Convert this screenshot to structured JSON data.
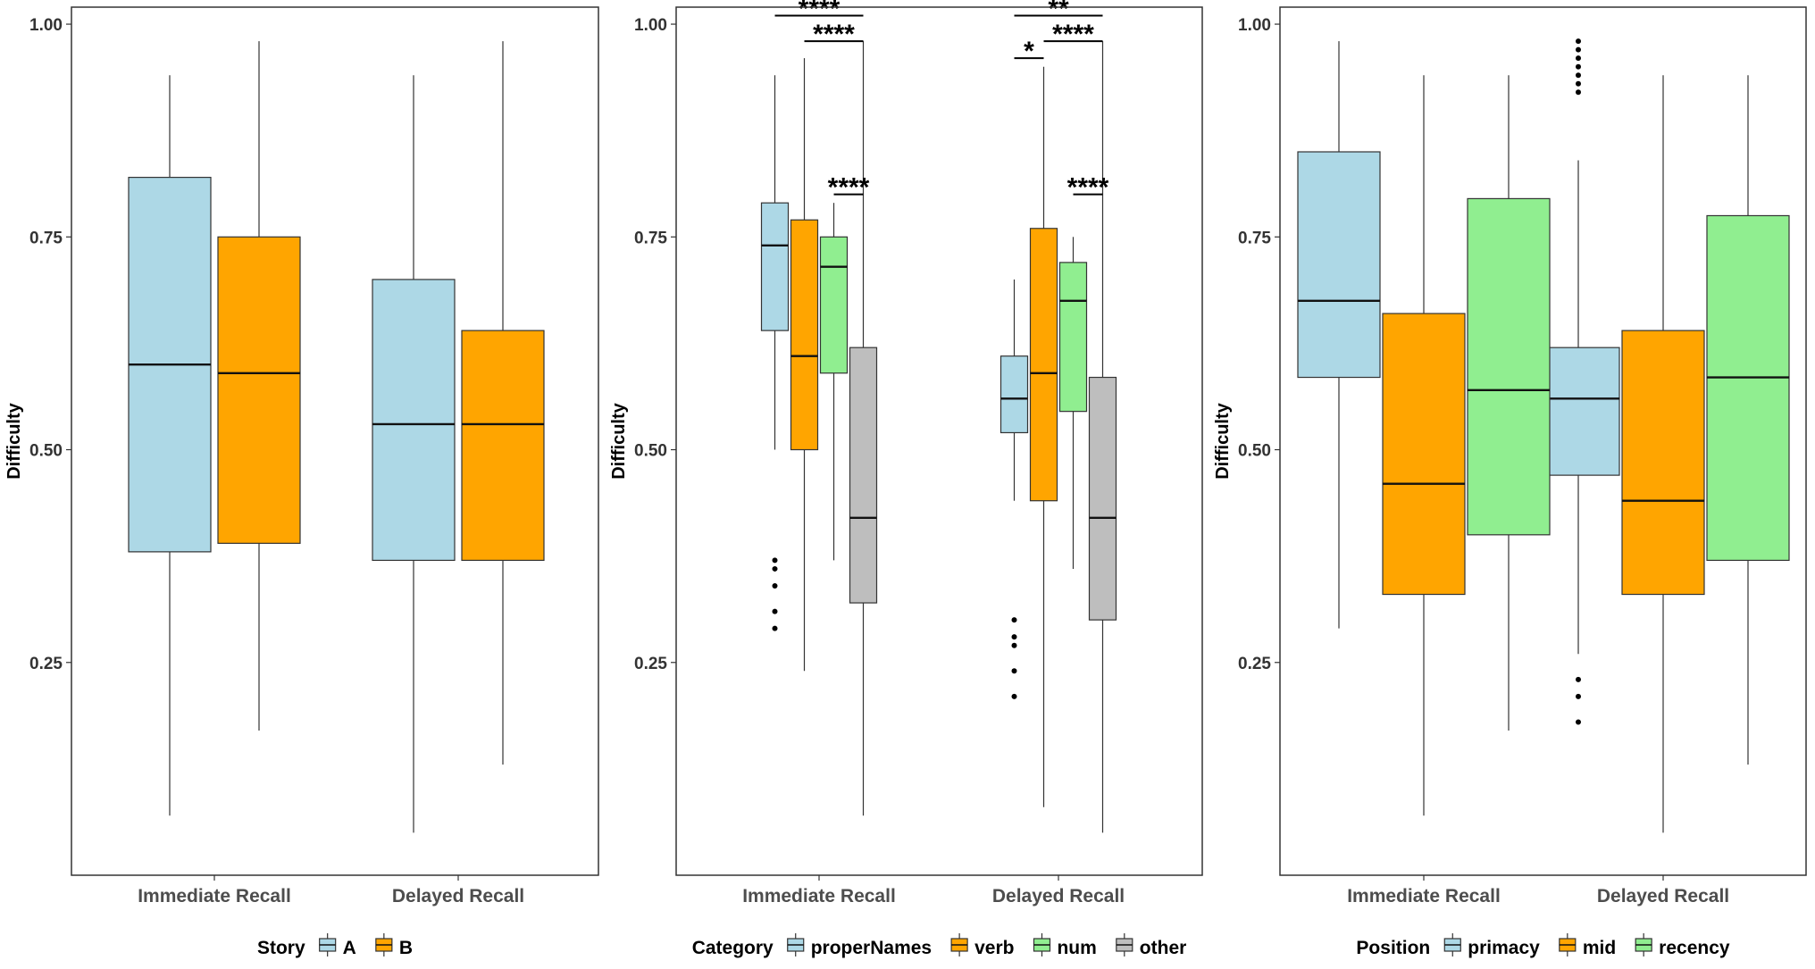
{
  "chart_data": [
    {
      "type": "boxplot",
      "ylabel": "Difficulty",
      "xlabel": "",
      "ylim": [
        0,
        1.02
      ],
      "yticks": [
        0.25,
        0.5,
        0.75,
        1.0
      ],
      "ytick_labels": [
        "0.25",
        "0.50",
        "0.75",
        "1.00"
      ],
      "categories": [
        "Immediate Recall",
        "Delayed Recall"
      ],
      "legend": {
        "title": "Story",
        "position": "bottom"
      },
      "series": [
        {
          "name": "A",
          "color": "#add8e6",
          "boxes": [
            {
              "min": 0.07,
              "q1": 0.38,
              "median": 0.6,
              "q3": 0.82,
              "max": 0.94,
              "outliers": []
            },
            {
              "min": 0.05,
              "q1": 0.37,
              "median": 0.53,
              "q3": 0.7,
              "max": 0.94,
              "outliers": []
            }
          ]
        },
        {
          "name": "B",
          "color": "#ffa500",
          "boxes": [
            {
              "min": 0.17,
              "q1": 0.39,
              "median": 0.59,
              "q3": 0.75,
              "max": 0.98,
              "outliers": []
            },
            {
              "min": 0.13,
              "q1": 0.37,
              "median": 0.53,
              "q3": 0.64,
              "max": 0.98,
              "outliers": []
            }
          ]
        }
      ],
      "annotations": []
    },
    {
      "type": "boxplot",
      "ylabel": "Difficulty",
      "xlabel": "",
      "ylim": [
        0,
        1.02
      ],
      "yticks": [
        0.25,
        0.5,
        0.75,
        1.0
      ],
      "ytick_labels": [
        "0.25",
        "0.50",
        "0.75",
        "1.00"
      ],
      "categories": [
        "Immediate Recall",
        "Delayed Recall"
      ],
      "legend": {
        "title": "Category",
        "position": "bottom"
      },
      "series": [
        {
          "name": "properNames",
          "color": "#add8e6",
          "boxes": [
            {
              "min": 0.5,
              "q1": 0.64,
              "median": 0.74,
              "q3": 0.79,
              "max": 0.94,
              "outliers": [
                0.37,
                0.36,
                0.34,
                0.31,
                0.29
              ]
            },
            {
              "min": 0.44,
              "q1": 0.52,
              "median": 0.56,
              "q3": 0.61,
              "max": 0.7,
              "outliers": [
                0.3,
                0.28,
                0.27,
                0.24,
                0.21
              ]
            }
          ]
        },
        {
          "name": "verb",
          "color": "#ffa500",
          "boxes": [
            {
              "min": 0.24,
              "q1": 0.5,
              "median": 0.61,
              "q3": 0.77,
              "max": 0.96,
              "outliers": []
            },
            {
              "min": 0.08,
              "q1": 0.44,
              "median": 0.59,
              "q3": 0.76,
              "max": 0.95,
              "outliers": []
            }
          ]
        },
        {
          "name": "num",
          "color": "#90ee90",
          "boxes": [
            {
              "min": 0.37,
              "q1": 0.59,
              "median": 0.715,
              "q3": 0.75,
              "max": 0.79,
              "outliers": []
            },
            {
              "min": 0.36,
              "q1": 0.545,
              "median": 0.675,
              "q3": 0.72,
              "max": 0.75,
              "outliers": []
            }
          ]
        },
        {
          "name": "other",
          "color": "#bebebe",
          "boxes": [
            {
              "min": 0.07,
              "q1": 0.32,
              "median": 0.42,
              "q3": 0.62,
              "max": 0.98,
              "outliers": []
            },
            {
              "min": 0.05,
              "q1": 0.3,
              "median": 0.42,
              "q3": 0.585,
              "max": 0.98,
              "outliers": []
            }
          ]
        }
      ],
      "annotations": [
        {
          "category": 0,
          "from": 0,
          "to": 3,
          "y": 1.01,
          "label": "****"
        },
        {
          "category": 0,
          "from": 1,
          "to": 3,
          "y": 0.98,
          "label": "****"
        },
        {
          "category": 0,
          "from": 2,
          "to": 3,
          "y": 0.8,
          "label": "****"
        },
        {
          "category": 1,
          "from": 0,
          "to": 3,
          "y": 1.01,
          "label": "**"
        },
        {
          "category": 1,
          "from": 1,
          "to": 3,
          "y": 0.98,
          "label": "****"
        },
        {
          "category": 1,
          "from": 0,
          "to": 1,
          "y": 0.96,
          "label": "*"
        },
        {
          "category": 1,
          "from": 2,
          "to": 3,
          "y": 0.8,
          "label": "****"
        }
      ]
    },
    {
      "type": "boxplot",
      "ylabel": "Difficulty",
      "xlabel": "",
      "ylim": [
        0,
        1.02
      ],
      "yticks": [
        0.25,
        0.5,
        0.75,
        1.0
      ],
      "ytick_labels": [
        "0.25",
        "0.50",
        "0.75",
        "1.00"
      ],
      "categories": [
        "Immediate Recall",
        "Delayed Recall"
      ],
      "legend": {
        "title": "Position",
        "position": "bottom"
      },
      "series": [
        {
          "name": "primacy",
          "color": "#add8e6",
          "boxes": [
            {
              "min": 0.29,
              "q1": 0.585,
              "median": 0.675,
              "q3": 0.85,
              "max": 0.98,
              "outliers": []
            },
            {
              "min": 0.26,
              "q1": 0.47,
              "median": 0.56,
              "q3": 0.62,
              "max": 0.84,
              "outliers": [
                0.98,
                0.97,
                0.96,
                0.95,
                0.94,
                0.93,
                0.92,
                0.23,
                0.21,
                0.18
              ]
            }
          ]
        },
        {
          "name": "mid",
          "color": "#ffa500",
          "boxes": [
            {
              "min": 0.07,
              "q1": 0.33,
              "median": 0.46,
              "q3": 0.66,
              "max": 0.94,
              "outliers": []
            },
            {
              "min": 0.05,
              "q1": 0.33,
              "median": 0.44,
              "q3": 0.64,
              "max": 0.94,
              "outliers": []
            }
          ]
        },
        {
          "name": "recency",
          "color": "#90ee90",
          "boxes": [
            {
              "min": 0.17,
              "q1": 0.4,
              "median": 0.57,
              "q3": 0.795,
              "max": 0.94,
              "outliers": []
            },
            {
              "min": 0.13,
              "q1": 0.37,
              "median": 0.585,
              "q3": 0.775,
              "max": 0.94,
              "outliers": []
            }
          ]
        }
      ],
      "annotations": []
    }
  ]
}
